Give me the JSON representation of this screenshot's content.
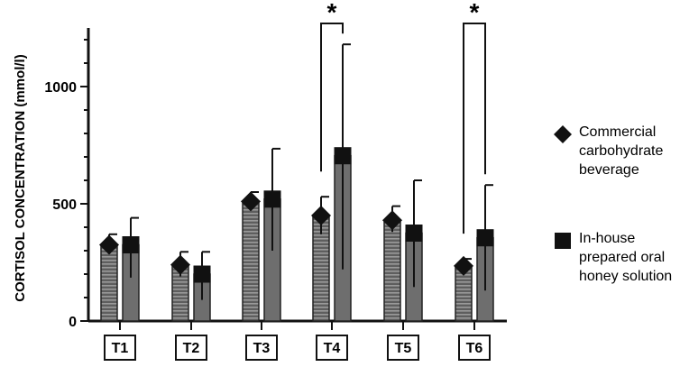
{
  "chart_data": {
    "type": "bar",
    "ylabel": "CORTISOL CONCENTRATION (mmol/l)",
    "xlabel": "",
    "ylim": [
      0,
      1250
    ],
    "yticks": [
      0,
      500,
      1000
    ],
    "ytick_labels": [
      "0",
      "500",
      "1000"
    ],
    "categories": [
      "T1",
      "T2",
      "T3",
      "T4",
      "T5",
      "T6"
    ],
    "series": [
      {
        "name": "Commercial carbohydrate beverage",
        "marker": "diamond",
        "fill": "horizontal-stripes",
        "values": [
          325,
          240,
          510,
          450,
          430,
          235
        ],
        "error_low": [
          290,
          190,
          480,
          370,
          380,
          200
        ],
        "error_high": [
          370,
          295,
          550,
          530,
          490,
          265
        ]
      },
      {
        "name": "In-house prepared oral honey solution",
        "marker": "square",
        "fill": "solid",
        "values": [
          325,
          200,
          520,
          705,
          375,
          355
        ],
        "error_low": [
          185,
          90,
          300,
          220,
          145,
          130
        ],
        "error_high": [
          440,
          295,
          735,
          1180,
          600,
          580
        ]
      }
    ],
    "significance": [
      {
        "category": "T4",
        "label": "*"
      },
      {
        "category": "T6",
        "label": "*"
      }
    ],
    "colors": {
      "bar_fill": "#6e6e6e",
      "stripe": "#9a9a9a",
      "marker": "#111111",
      "axis": "#111111"
    },
    "legend_position": "right"
  }
}
